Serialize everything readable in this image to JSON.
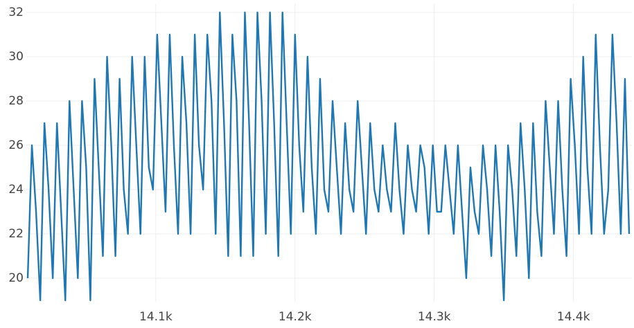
{
  "chart_data": {
    "type": "line",
    "x": [
      14008,
      14011,
      14014,
      14017,
      14020,
      14023,
      14026,
      14029,
      14032,
      14035,
      14038,
      14041,
      14044,
      14047,
      14050,
      14053,
      14056,
      14059,
      14062,
      14065,
      14068,
      14071,
      14074,
      14077,
      14080,
      14083,
      14086,
      14089,
      14092,
      14095,
      14098,
      14101,
      14104,
      14107,
      14110,
      14113,
      14116,
      14119,
      14122,
      14125,
      14128,
      14131,
      14134,
      14137,
      14140,
      14143,
      14146,
      14149,
      14152,
      14155,
      14158,
      14161,
      14164,
      14167,
      14170,
      14173,
      14176,
      14179,
      14182,
      14185,
      14188,
      14191,
      14194,
      14197,
      14200,
      14203,
      14206,
      14209,
      14212,
      14215,
      14218,
      14221,
      14224,
      14227,
      14230,
      14233,
      14236,
      14239,
      14242,
      14245,
      14248,
      14251,
      14254,
      14257,
      14260,
      14263,
      14266,
      14269,
      14272,
      14275,
      14278,
      14281,
      14284,
      14287,
      14290,
      14293,
      14296,
      14299,
      14302,
      14305,
      14308,
      14311,
      14314,
      14317,
      14320,
      14323,
      14326,
      14329,
      14332,
      14335,
      14338,
      14341,
      14344,
      14347,
      14350,
      14353,
      14356,
      14359,
      14362,
      14365,
      14368,
      14371,
      14374,
      14377,
      14380,
      14383,
      14386,
      14389,
      14392,
      14395,
      14398,
      14401,
      14404,
      14407,
      14410,
      14413,
      14416,
      14419,
      14422,
      14425,
      14428,
      14431,
      14434,
      14437,
      14440
    ],
    "values": [
      20,
      26,
      23,
      19,
      27,
      24,
      20,
      27,
      23,
      19,
      28,
      24,
      20,
      28,
      25,
      19,
      29,
      25,
      21,
      30,
      26,
      21,
      29,
      24,
      22,
      30,
      26,
      22,
      30,
      25,
      24,
      31,
      27,
      23,
      31,
      26,
      22,
      30,
      27,
      22,
      31,
      26,
      24,
      31,
      28,
      22,
      32,
      27,
      21,
      31,
      28,
      21,
      32,
      27,
      21,
      32,
      28,
      22,
      32,
      27,
      21,
      32,
      27,
      22,
      31,
      26,
      23,
      30,
      25,
      22,
      29,
      24,
      23,
      28,
      25,
      22,
      27,
      24,
      23,
      28,
      25,
      22,
      27,
      24,
      23,
      26,
      24,
      23,
      27,
      24,
      22,
      26,
      24,
      23,
      26,
      25,
      22,
      26,
      23,
      23,
      26,
      24,
      22,
      26,
      23,
      20,
      25,
      23,
      22,
      26,
      24,
      21,
      26,
      23,
      19,
      26,
      24,
      21,
      27,
      24,
      20,
      27,
      23,
      21,
      28,
      25,
      22,
      28,
      24,
      21,
      29,
      26,
      22,
      30,
      25,
      22,
      31,
      26,
      22,
      24,
      31,
      27,
      22,
      29,
      22
    ],
    "color": "#1f77b4",
    "xlim": [
      14007,
      14442
    ],
    "ylim": [
      18.95,
      32.4
    ],
    "xticks": [
      {
        "value": 14100,
        "label": "14.1k"
      },
      {
        "value": 14200,
        "label": "14.2k"
      },
      {
        "value": 14300,
        "label": "14.3k"
      },
      {
        "value": 14400,
        "label": "14.4k"
      }
    ],
    "yticks": [
      20,
      22,
      24,
      26,
      28,
      30,
      32
    ],
    "grid": true
  }
}
